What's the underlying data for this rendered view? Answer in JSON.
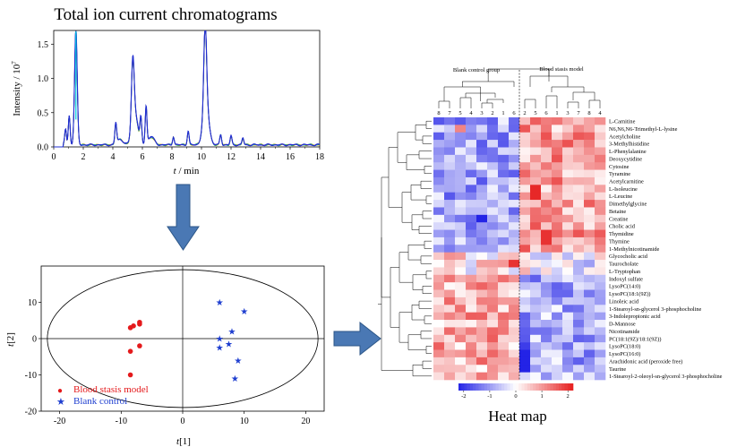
{
  "chromatogram": {
    "title": "Total ion current chromatograms",
    "ylabel": "Intensity / 10",
    "ylabel_exp": "7",
    "xlabel_italic": "t",
    "xlabel_rest": " / min"
  },
  "pca": {
    "xlabel_italic": "t",
    "xlabel_rest": "[1]",
    "ylabel_italic": "t",
    "ylabel_rest": "[2]",
    "legend": [
      {
        "label": "Blood stasis model",
        "marker": "●",
        "color": "#e41a1c"
      },
      {
        "label": "Blank control",
        "marker": "★",
        "color": "#1f3fd0"
      }
    ]
  },
  "heatmap": {
    "title": "Heat map",
    "group_left": "Blank control group",
    "group_right": "Blood stasis model",
    "col_labels": [
      "8",
      "7",
      "5",
      "4",
      "3",
      "2",
      "1",
      "6",
      "2",
      "5",
      "6",
      "1",
      "3",
      "7",
      "8",
      "4"
    ],
    "colorbar_ticks": [
      "-2",
      "-1",
      "0",
      "1",
      "2"
    ],
    "colors": {
      "low": "#1a1ae6",
      "mid": "#ffffff",
      "high": "#e61a1a"
    }
  },
  "chart_data": [
    {
      "type": "line",
      "title": "Total ion current chromatograms",
      "xlabel": "t / min",
      "ylabel": "Intensity / 10^7",
      "xlim": [
        0,
        18
      ],
      "ylim": [
        0,
        1.7
      ],
      "xticks": [
        0,
        2,
        4,
        6,
        8,
        10,
        12,
        14,
        16,
        18
      ],
      "yticks": [
        0.0,
        0.5,
        1.0,
        1.5
      ],
      "peaks": [
        {
          "x": 0.8,
          "y": 0.23
        },
        {
          "x": 1.05,
          "y": 0.42
        },
        {
          "x": 1.5,
          "y": 1.68
        },
        {
          "x": 4.2,
          "y": 0.3
        },
        {
          "x": 5.35,
          "y": 0.95
        },
        {
          "x": 5.9,
          "y": 0.35
        },
        {
          "x": 6.25,
          "y": 0.55
        },
        {
          "x": 8.1,
          "y": 0.12
        },
        {
          "x": 9.1,
          "y": 0.2
        },
        {
          "x": 10.25,
          "y": 1.2
        },
        {
          "x": 11.3,
          "y": 0.15
        },
        {
          "x": 12.0,
          "y": 0.13
        },
        {
          "x": 12.8,
          "y": 0.1
        }
      ]
    },
    {
      "type": "scatter",
      "xlabel": "t[1]",
      "ylabel": "t[2]",
      "xlim": [
        -23,
        23
      ],
      "ylim": [
        -20,
        20
      ],
      "xticks": [
        -20,
        -10,
        0,
        10,
        20
      ],
      "yticks": [
        -20,
        -10,
        0,
        10
      ],
      "series": [
        {
          "name": "Blood stasis model",
          "points": [
            [
              -8.5,
              3
            ],
            [
              -8,
              3.5
            ],
            [
              -7,
              4.5
            ],
            [
              -7,
              4
            ],
            [
              -7,
              -2
            ],
            [
              -8.5,
              -3.5
            ],
            [
              -8.5,
              -10
            ]
          ]
        },
        {
          "name": "Blank control",
          "points": [
            [
              6,
              10
            ],
            [
              10,
              7.5
            ],
            [
              8,
              2
            ],
            [
              6,
              0
            ],
            [
              7.5,
              -1.5
            ],
            [
              6,
              -2.5
            ],
            [
              9,
              -6
            ],
            [
              8.5,
              -11
            ]
          ]
        }
      ],
      "ellipse": {
        "cx": 0,
        "cy": 0,
        "rx": 22,
        "ry": 19
      }
    },
    {
      "type": "heatmap",
      "title": "Heat map",
      "columns": [
        "8",
        "7",
        "5",
        "4",
        "3",
        "2",
        "1",
        "6",
        "2",
        "5",
        "6",
        "1",
        "3",
        "7",
        "8",
        "4"
      ],
      "rows": [
        "L-Carnitine",
        "N6,N6,N6-Trimethyl-L-lysine",
        "Acetylcholine",
        "3-Methylhistidine",
        "L-Phenylalanine",
        "Deoxycytidine",
        "Cytosine",
        "Tyramine",
        "Acetylcarnitine",
        "L-Isoleucine",
        "L-Leucine",
        "Dimethylglycine",
        "Betaine",
        "Creatine",
        "Cholic acid",
        "Thymidine",
        "Thymine",
        "1-Methylnicotinamide",
        "Glycocholic acid",
        "Taurocholate",
        "L-Tryptophan",
        "Indoxyl sulfate",
        "LysoPC(14:0)",
        "LysoPC(18:1(9Z))",
        "Linoleic acid",
        "1-Stearoyl-sn-glycerol 3-phosphocholine",
        "3-Indolepropionic acid",
        "D-Mannose",
        "Nicotinamide",
        "PC(18:1(9Z)/18:1(9Z))",
        "LysoPC(18:0)",
        "LysoPC(16:0)",
        "Arachidonic acid (peroxide free)",
        "Taurine",
        "1-Stearoyl-2-oleoyl-sn-glycerol 3-phosphocholine"
      ],
      "range": [
        -2,
        2
      ]
    }
  ]
}
